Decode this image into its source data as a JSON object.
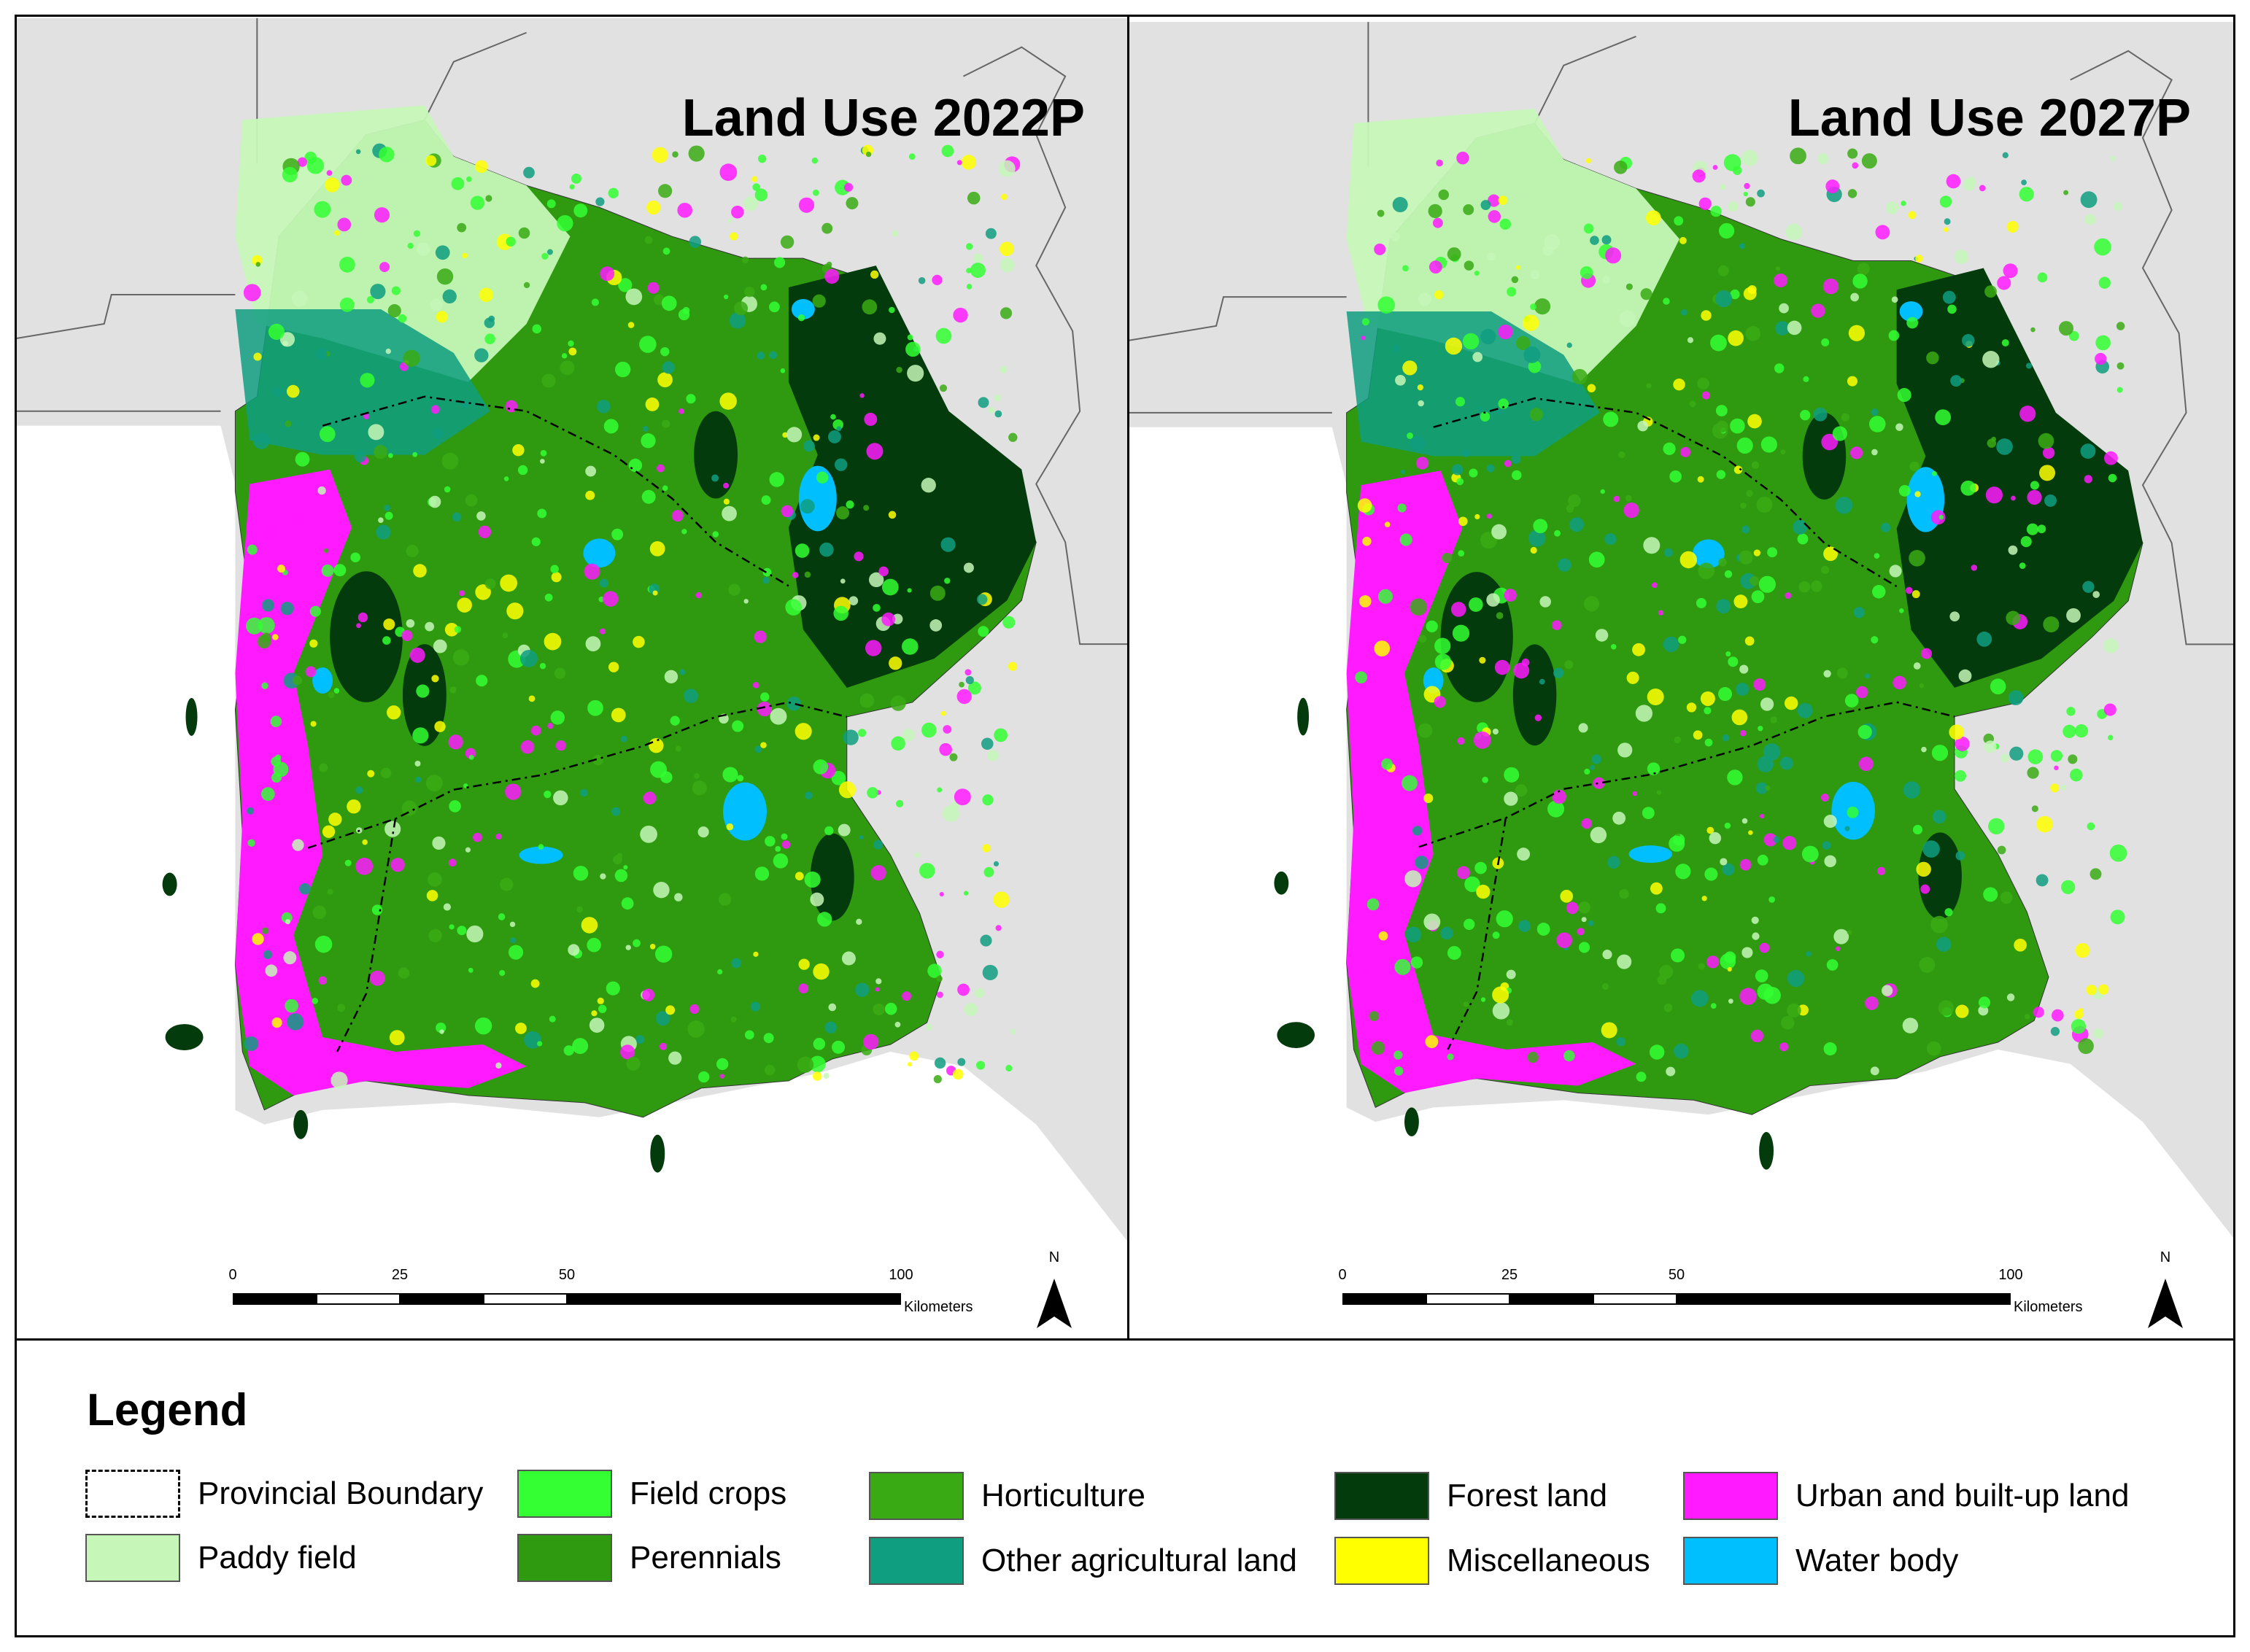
{
  "maps": [
    {
      "title": "Land Use 2022P"
    },
    {
      "title": "Land Use 2027P"
    }
  ],
  "scalebar": {
    "ticks": [
      "0",
      "25",
      "50",
      "100"
    ],
    "unit": "Kilometers"
  },
  "north_label": "N",
  "legend": {
    "title": "Legend",
    "items": [
      {
        "label": "Provincial Boundary",
        "color": "#ffffff",
        "style": "dashed"
      },
      {
        "label": "Paddy field",
        "color": "#c6f7b8"
      },
      {
        "label": "Field crops",
        "color": "#33ff33"
      },
      {
        "label": "Perennials",
        "color": "#2f9a10"
      },
      {
        "label": "Horticulture",
        "color": "#3aaa14"
      },
      {
        "label": "Other agricultural land",
        "color": "#0f9e80"
      },
      {
        "label": "Forest land",
        "color": "#043b0d"
      },
      {
        "label": "Miscellaneous",
        "color": "#ffff00"
      },
      {
        "label": "Urban and built-up land",
        "color": "#ff1aff"
      },
      {
        "label": "Water body",
        "color": "#00bfff"
      }
    ]
  },
  "colors": {
    "background_land": "#e1e1e1",
    "sea": "#ffffff",
    "boundary": "#000000"
  }
}
